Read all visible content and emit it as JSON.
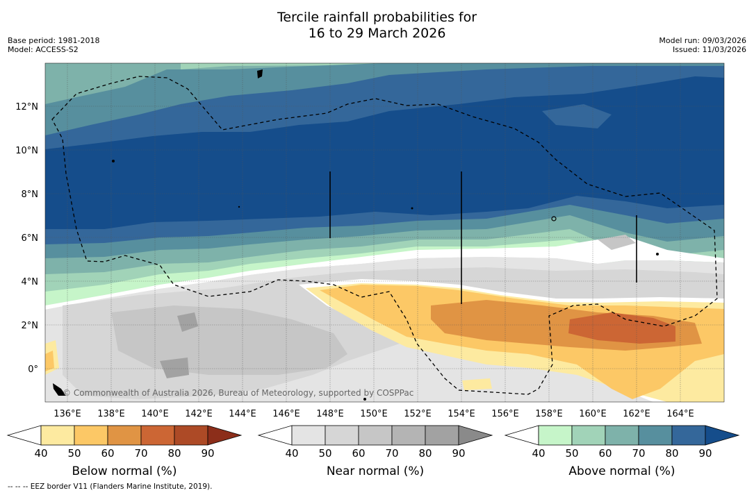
{
  "title": {
    "line1": "Tercile rainfall probabilities for",
    "line2": "16 to 29 March 2026"
  },
  "meta": {
    "base_period": "Base period: 1981-2018",
    "model": "Model: ACCESS-S2",
    "model_run": "Model run: 09/03/2026",
    "issued": "Issued: 11/03/2026"
  },
  "map": {
    "lon_labels": [
      "136°E",
      "138°E",
      "140°E",
      "142°E",
      "144°E",
      "146°E",
      "148°E",
      "150°E",
      "152°E",
      "154°E",
      "156°E",
      "158°E",
      "160°E",
      "162°E",
      "164°E"
    ],
    "lat_labels": [
      "12°N",
      "10°N",
      "8°N",
      "6°N",
      "4°N",
      "2°N",
      "0°"
    ],
    "copyright": "© Commonwealth of Australia 2026, Bureau of Meteorology, supported by COSPPac"
  },
  "legends": [
    {
      "title": "Below normal (%)",
      "ticks": [
        "40",
        "50",
        "60",
        "70",
        "80",
        "90"
      ],
      "colors": [
        "#fdeaa0",
        "#fcc866",
        "#e09444",
        "#cc6634",
        "#ad4a26",
        "#8c2e1a"
      ]
    },
    {
      "title": "Near normal (%)",
      "ticks": [
        "40",
        "50",
        "60",
        "70",
        "80",
        "90"
      ],
      "colors": [
        "#e4e4e4",
        "#d6d6d6",
        "#c6c6c6",
        "#b4b4b4",
        "#a2a2a2",
        "#8a8a8a"
      ]
    },
    {
      "title": "Above normal (%)",
      "ticks": [
        "40",
        "50",
        "60",
        "70",
        "80",
        "90"
      ],
      "colors": [
        "#c6f5c9",
        "#a1d3b8",
        "#7eb2aa",
        "#578f9e",
        "#34679a",
        "#154d8b"
      ]
    }
  ],
  "footer": "--  --  -- EEZ border V11 (Flanders Marine Institute, 2019)."
}
